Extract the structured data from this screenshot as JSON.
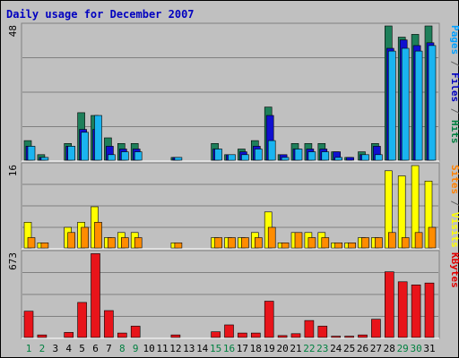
{
  "chart_data": [
    {
      "type": "bar",
      "title": "Daily usage for December 2007",
      "ymax_label": "48",
      "ylabel_parts": [
        {
          "text": "Pages",
          "color": "#00a0ff"
        },
        {
          "text": " / ",
          "color": "#606060"
        },
        {
          "text": "Files",
          "color": "#0000c0"
        },
        {
          "text": " / ",
          "color": "#606060"
        },
        {
          "text": "Hits",
          "color": "#008040"
        }
      ],
      "ylim": [
        0,
        48
      ],
      "categories": [
        "1",
        "2",
        "3",
        "4",
        "5",
        "6",
        "7",
        "8",
        "9",
        "10",
        "11",
        "12",
        "13",
        "14",
        "15",
        "16",
        "17",
        "18",
        "19",
        "20",
        "21",
        "22",
        "23",
        "24",
        "25",
        "26",
        "27",
        "28",
        "29",
        "30",
        "31"
      ],
      "series": [
        {
          "name": "Hits",
          "color": "#1e7f5a",
          "values": [
            7,
            2,
            0,
            6,
            17,
            16,
            8,
            6,
            6,
            0,
            0,
            1,
            0,
            0,
            6,
            2,
            4,
            7,
            19,
            2,
            6,
            6,
            6,
            3,
            1,
            3,
            6,
            48,
            44,
            45,
            48
          ]
        },
        {
          "name": "Files",
          "color": "#1010d0",
          "values": [
            5,
            1,
            0,
            5,
            11,
            11,
            5,
            4,
            4,
            0,
            0,
            1,
            0,
            0,
            4,
            2,
            3,
            5,
            16,
            2,
            4,
            4,
            4,
            3,
            1,
            2,
            5,
            40,
            43,
            41,
            42
          ]
        },
        {
          "name": "Pages",
          "color": "#1ab4f0",
          "values": [
            5,
            1,
            0,
            5,
            10,
            16,
            2,
            3,
            3,
            0,
            0,
            1,
            0,
            0,
            4,
            2,
            2,
            4,
            7,
            1,
            4,
            3,
            3,
            1,
            0,
            2,
            2,
            39,
            40,
            39,
            41
          ]
        }
      ]
    },
    {
      "type": "bar",
      "ymax_label": "16",
      "ylabel_parts": [
        {
          "text": "Sites",
          "color": "#ff8000"
        },
        {
          "text": " / ",
          "color": "#606060"
        },
        {
          "text": "Visits",
          "color": "#ffff00"
        }
      ],
      "ylim": [
        0,
        16
      ],
      "categories": [
        "1",
        "2",
        "3",
        "4",
        "5",
        "6",
        "7",
        "8",
        "9",
        "10",
        "11",
        "12",
        "13",
        "14",
        "15",
        "16",
        "17",
        "18",
        "19",
        "20",
        "21",
        "22",
        "23",
        "24",
        "25",
        "26",
        "27",
        "28",
        "29",
        "30",
        "31"
      ],
      "series": [
        {
          "name": "Visits",
          "color": "#ffff00",
          "values": [
            5,
            1,
            0,
            4,
            5,
            8,
            2,
            3,
            3,
            0,
            0,
            1,
            0,
            0,
            2,
            2,
            2,
            3,
            7,
            1,
            3,
            3,
            3,
            1,
            1,
            2,
            2,
            15,
            14,
            16,
            13
          ]
        },
        {
          "name": "Sites",
          "color": "#ff8c00",
          "values": [
            2,
            1,
            0,
            3,
            4,
            5,
            2,
            2,
            2,
            0,
            0,
            1,
            0,
            0,
            2,
            2,
            2,
            2,
            4,
            1,
            3,
            2,
            2,
            1,
            1,
            2,
            2,
            3,
            2,
            3,
            4
          ]
        }
      ]
    },
    {
      "type": "bar",
      "ymax_label": "673",
      "ylabel_parts": [
        {
          "text": "KBytes",
          "color": "#e00000"
        }
      ],
      "ylim": [
        0,
        673
      ],
      "categories": [
        "1",
        "2",
        "3",
        "4",
        "5",
        "6",
        "7",
        "8",
        "9",
        "10",
        "11",
        "12",
        "13",
        "14",
        "15",
        "16",
        "17",
        "18",
        "19",
        "20",
        "21",
        "22",
        "23",
        "24",
        "25",
        "26",
        "27",
        "28",
        "29",
        "30",
        "31"
      ],
      "series": [
        {
          "name": "KBytes",
          "color": "#e8141a",
          "values": [
            210,
            20,
            0,
            40,
            280,
            670,
            215,
            35,
            90,
            0,
            0,
            20,
            0,
            0,
            45,
            100,
            35,
            35,
            290,
            15,
            30,
            135,
            90,
            10,
            10,
            20,
            145,
            525,
            445,
            420,
            435
          ]
        }
      ]
    }
  ],
  "weekend_days": [
    "1",
    "2",
    "8",
    "9",
    "15",
    "16",
    "22",
    "23",
    "29",
    "30"
  ],
  "day_label_colors": {
    "weekday": "#000000",
    "weekend": "#008040"
  }
}
